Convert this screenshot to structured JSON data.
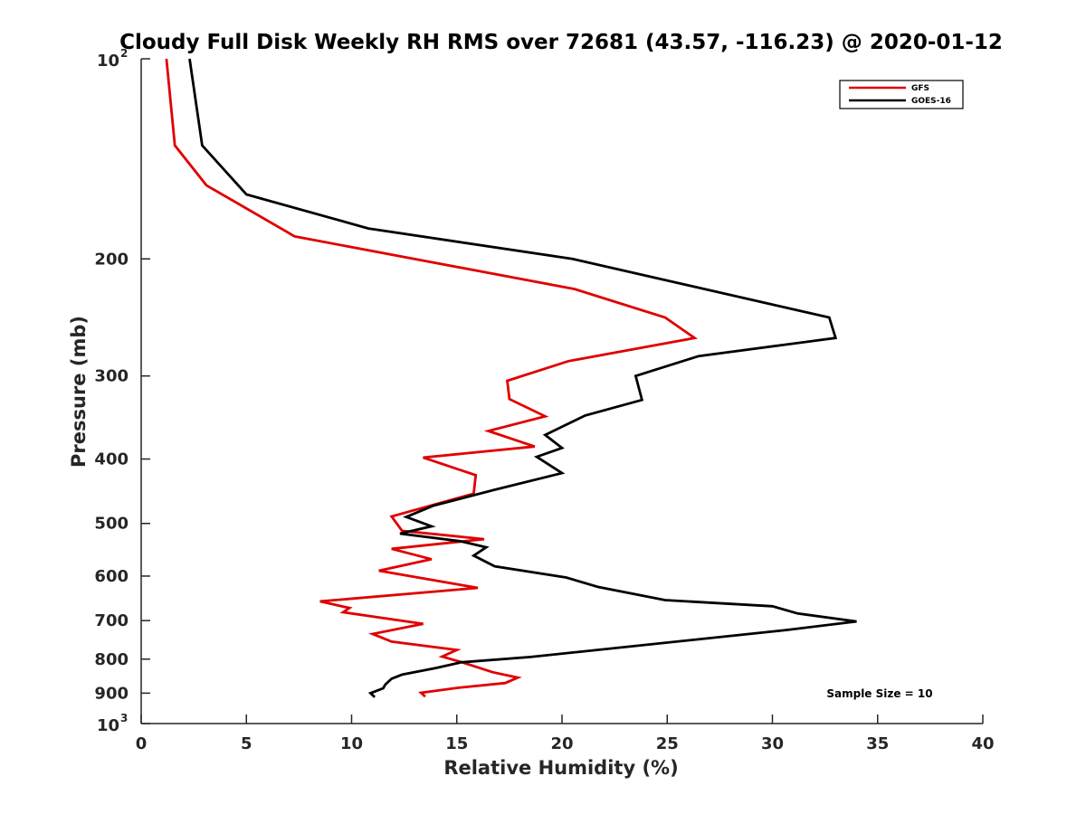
{
  "chart_data": {
    "type": "line",
    "title": "Cloudy Full Disk Weekly RH RMS over 72681 (43.57, -116.23) @ 2020-01-12",
    "xlabel": "Relative Humidity (%)",
    "ylabel": "Pressure (mb)",
    "xlim": [
      0,
      40
    ],
    "ylim": [
      100,
      1000
    ],
    "yscale": "log",
    "y_reversed": true,
    "grid": false,
    "legend_position": "top-right",
    "x_ticks": [
      "0",
      "5",
      "10",
      "15",
      "20",
      "25",
      "30",
      "35",
      "40"
    ],
    "y_ticks": [
      {
        "value": 100,
        "base": "10",
        "exp": "2"
      },
      {
        "value": 200,
        "label": "200"
      },
      {
        "value": 300,
        "label": "300"
      },
      {
        "value": 400,
        "label": "400"
      },
      {
        "value": 500,
        "label": "500"
      },
      {
        "value": 600,
        "label": "600"
      },
      {
        "value": 700,
        "label": "700"
      },
      {
        "value": 800,
        "label": "800"
      },
      {
        "value": 900,
        "label": "900"
      },
      {
        "value": 1000,
        "base": "10",
        "exp": "3"
      }
    ],
    "annotation": "Sample Size = 10",
    "series": [
      {
        "name": "GFS",
        "color": "#e00000",
        "x": [
          1.2,
          1.6,
          3.1,
          7.3,
          20.6,
          24.9,
          26.3,
          20.3,
          17.4,
          17.5,
          19.2,
          16.5,
          18.7,
          13.4,
          15.9,
          15.8,
          11.9,
          12.4,
          16.3,
          11.9,
          13.8,
          11.3,
          16.0,
          8.5,
          9.9,
          9.6,
          13.4,
          11.0,
          11.9,
          15.0,
          14.3,
          15.2,
          16.7,
          17.9,
          17.3,
          15.0,
          13.3,
          13.5
        ],
        "y": [
          100,
          135,
          155,
          185,
          222,
          245,
          263,
          285,
          305,
          325,
          345,
          363,
          383,
          398,
          423,
          451,
          488,
          513,
          528,
          546,
          566,
          589,
          625,
          655,
          670,
          680,
          708,
          733,
          753,
          775,
          793,
          808,
          837,
          853,
          869,
          884,
          899,
          911
        ]
      },
      {
        "name": "GOES-16",
        "color": "#000000",
        "x": [
          2.3,
          2.9,
          5.0,
          10.8,
          20.5,
          32.7,
          33.0,
          26.5,
          23.5,
          23.8,
          21.1,
          19.2,
          20.0,
          18.8,
          20.0,
          16.8,
          13.9,
          12.6,
          13.8,
          12.3,
          15.2,
          16.4,
          15.8,
          16.8,
          20.2,
          21.7,
          24.9,
          30.0,
          31.2,
          34.0,
          30.7,
          18.5,
          15.2,
          14.0,
          12.4,
          11.9,
          11.6,
          11.5,
          10.9,
          11.1
        ],
        "y": [
          100,
          135,
          160,
          180,
          200,
          245,
          263,
          280,
          300,
          326,
          344,
          368,
          385,
          397,
          420,
          445,
          470,
          489,
          505,
          518,
          532,
          543,
          559,
          580,
          603,
          623,
          652,
          666,
          683,
          702,
          723,
          794,
          809,
          825,
          844,
          856,
          874,
          885,
          900,
          913
        ]
      }
    ]
  }
}
